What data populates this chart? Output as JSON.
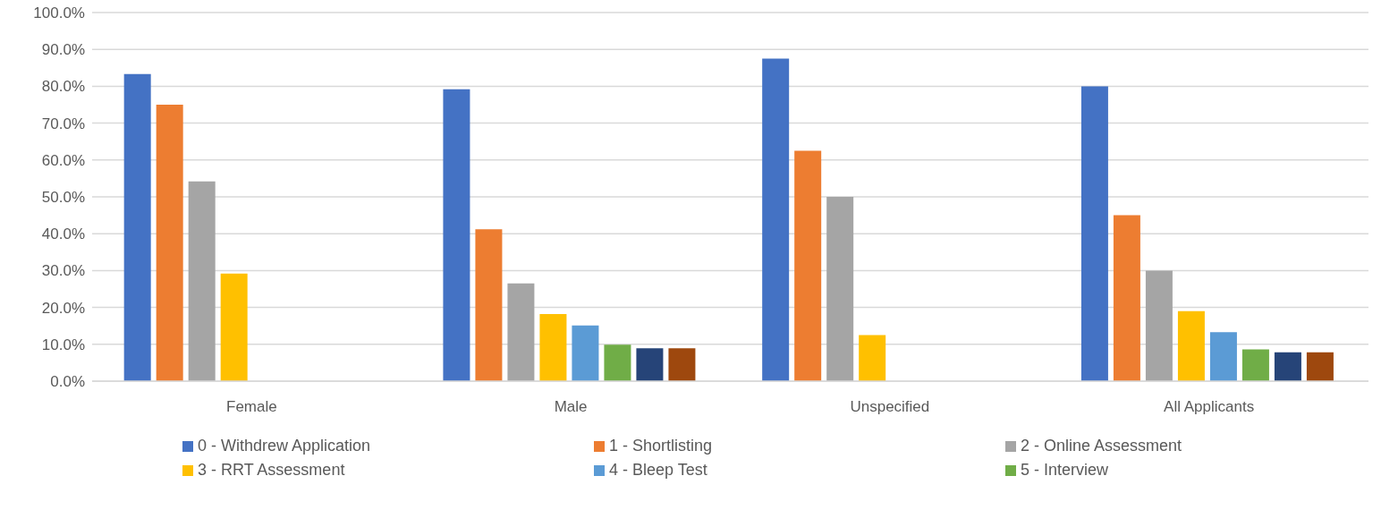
{
  "chart_data": {
    "type": "bar",
    "categories": [
      "Female",
      "Male",
      "Unspecified",
      "All Applicants"
    ],
    "series": [
      {
        "name": "0 - Withdrew Application",
        "color": "#4472c4",
        "values": [
          83.3,
          79.2,
          87.5,
          80.0
        ]
      },
      {
        "name": "1 - Shortlisting",
        "color": "#ed7d31",
        "values": [
          75.0,
          41.2,
          62.5,
          45.0
        ]
      },
      {
        "name": "2 - Online Assessment",
        "color": "#a5a5a5",
        "values": [
          54.2,
          26.5,
          50.0,
          30.0
        ]
      },
      {
        "name": "3 - RRT Assessment",
        "color": "#ffc000",
        "values": [
          29.2,
          18.2,
          12.5,
          19.0
        ]
      },
      {
        "name": "4 - Bleep Test",
        "color": "#5b9bd5",
        "values": [
          0,
          15.1,
          0,
          13.3
        ]
      },
      {
        "name": "5 - Interview",
        "color": "#70ad47",
        "values": [
          0,
          9.9,
          0,
          8.6
        ]
      },
      {
        "color": "#264478",
        "values": [
          0,
          8.9,
          0,
          7.8
        ]
      },
      {
        "color": "#9e480e",
        "values": [
          0,
          8.9,
          0,
          7.8
        ]
      }
    ],
    "ylim": [
      0,
      100
    ],
    "yticks": [
      {
        "value": 0,
        "label": "0.0%"
      },
      {
        "value": 10,
        "label": "10.0%"
      },
      {
        "value": 20,
        "label": "20.0%"
      },
      {
        "value": 30,
        "label": "30.0%"
      },
      {
        "value": 40,
        "label": "40.0%"
      },
      {
        "value": 50,
        "label": "50.0%"
      },
      {
        "value": 60,
        "label": "60.0%"
      },
      {
        "value": 70,
        "label": "70.0%"
      },
      {
        "value": 80,
        "label": "80.0%"
      },
      {
        "value": 90,
        "label": "90.0%"
      },
      {
        "value": 100,
        "label": "100.0%"
      }
    ],
    "grid": "y",
    "legend": "bottom"
  }
}
